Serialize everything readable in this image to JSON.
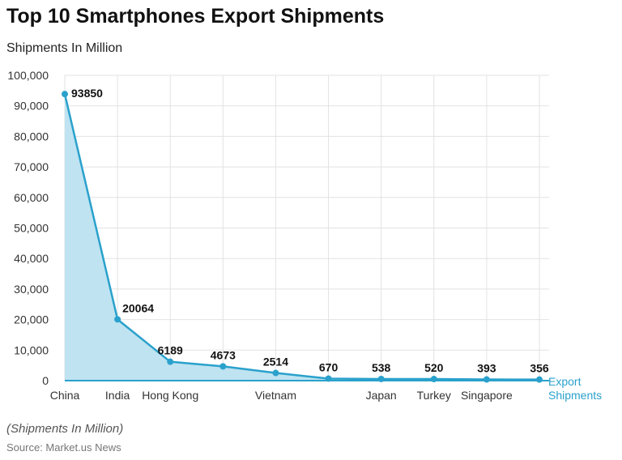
{
  "header": {
    "title": "Top 10 Smartphones Export Shipments",
    "subtitle": "Shipments In Million"
  },
  "footer": {
    "note": "(Shipments In Million)",
    "source": "Source: Market.us News"
  },
  "chart_data": {
    "type": "area",
    "categories": [
      "China",
      "India",
      "Hong Kong",
      "",
      "Vietnam",
      "",
      "Japan",
      "Turkey",
      "Singapore",
      ""
    ],
    "series": [
      {
        "name": "Export Shipments",
        "values": [
          93850,
          20064,
          6189,
          4673,
          2514,
          670,
          538,
          520,
          393,
          356
        ],
        "data_labels": [
          "93850",
          "20064",
          "6189",
          "4673",
          "2514",
          "670",
          "538",
          "520",
          "393",
          "356"
        ]
      }
    ],
    "ylim": [
      0,
      100000
    ],
    "yticks": [
      0,
      10000,
      20000,
      30000,
      40000,
      50000,
      60000,
      70000,
      80000,
      90000,
      100000
    ],
    "ytick_labels": [
      "0",
      "10,000",
      "20,000",
      "30,000",
      "40,000",
      "50,000",
      "60,000",
      "70,000",
      "80,000",
      "90,000",
      "100,000"
    ],
    "series_label_lines": [
      "Export",
      "Shipments"
    ],
    "grid": true,
    "colors": {
      "line": "#2aa1cc",
      "fill": "#bfe3f1",
      "grid": "#e2e2e2"
    }
  }
}
